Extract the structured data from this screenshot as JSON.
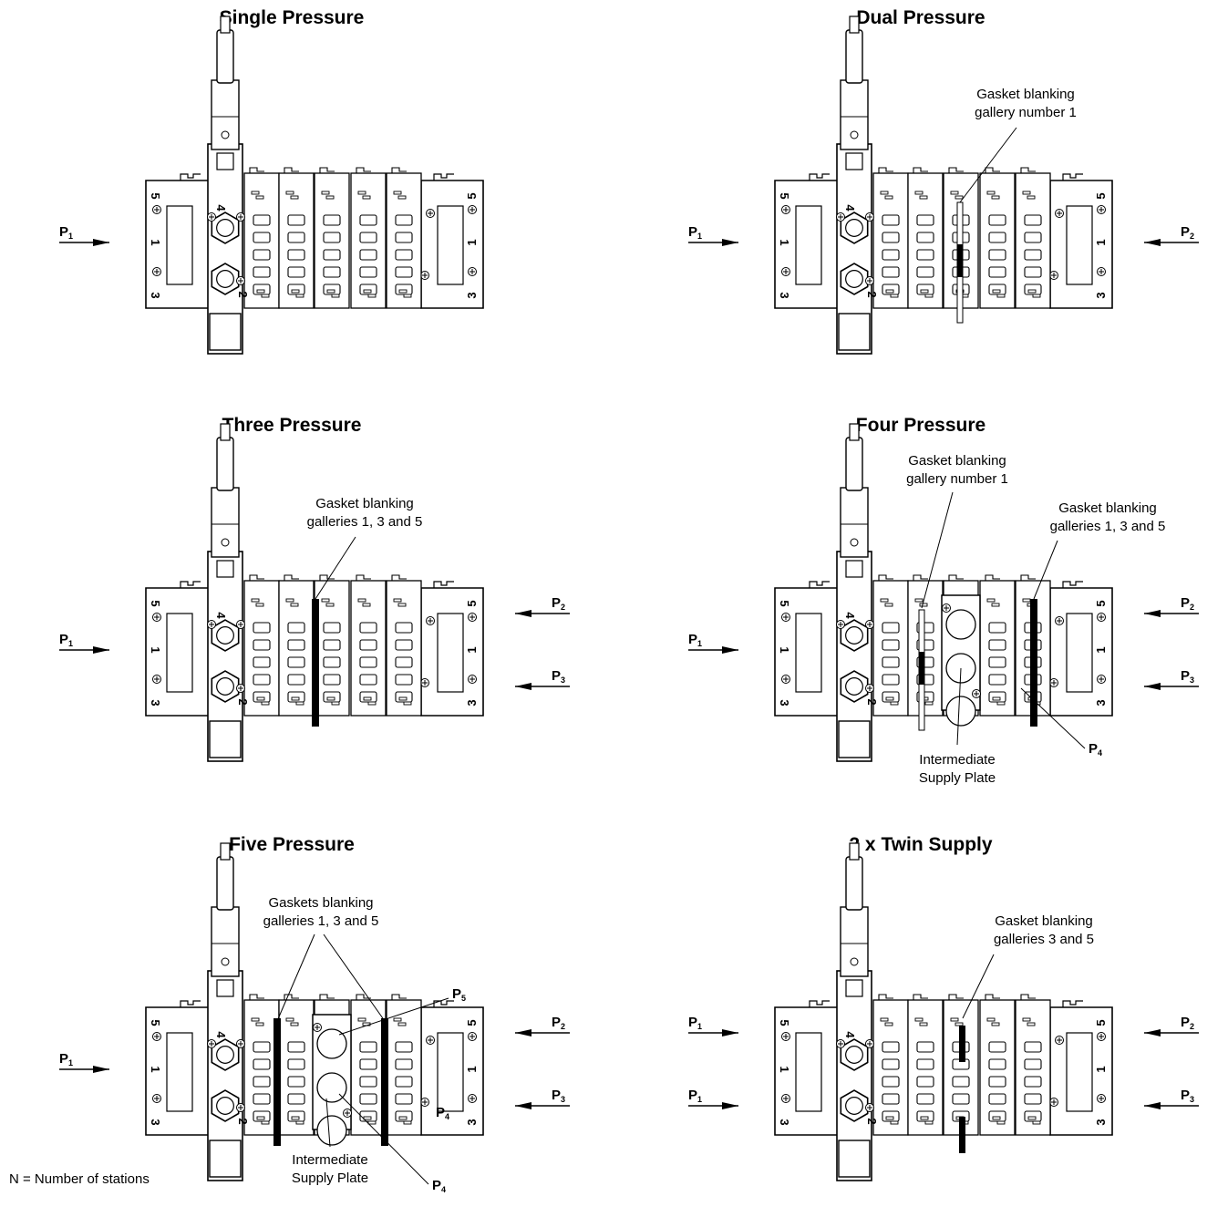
{
  "panels": [
    {
      "id": "single",
      "title": "Single Pressure",
      "left_inputs": [
        "P1"
      ],
      "right_inputs": [],
      "blanking_bars": [],
      "supply_plate": false,
      "callouts": []
    },
    {
      "id": "dual",
      "title": "Dual Pressure",
      "left_inputs": [
        "P1"
      ],
      "right_inputs": [
        "P2"
      ],
      "blanking_bars": [
        "gasket-1-full"
      ],
      "supply_plate": false,
      "callouts": [
        {
          "lines": [
            "Gasket blanking",
            "gallery number 1"
          ]
        }
      ]
    },
    {
      "id": "three",
      "title": "Three Pressure",
      "left_inputs": [
        "P1"
      ],
      "right_inputs": [
        "P2",
        "P3"
      ],
      "blanking_bars": [
        "gasket-135"
      ],
      "supply_plate": false,
      "callouts": [
        {
          "lines": [
            "Gasket blanking",
            "galleries 1, 3 and 5"
          ]
        }
      ]
    },
    {
      "id": "four",
      "title": "Four Pressure",
      "left_inputs": [
        "P1"
      ],
      "right_inputs": [
        "P2",
        "P3"
      ],
      "blanking_bars": [
        "gasket-1-full",
        "gasket-135"
      ],
      "supply_plate": true,
      "callouts": [
        {
          "lines": [
            "Gasket blanking",
            "gallery number 1"
          ]
        },
        {
          "lines": [
            "Gasket blanking",
            "galleries 1, 3 and 5"
          ]
        },
        {
          "lines": [
            "Intermediate",
            "Supply Plate"
          ]
        },
        {
          "lines": [
            "P4"
          ]
        }
      ]
    },
    {
      "id": "five",
      "title": "Five Pressure",
      "left_inputs": [
        "P1"
      ],
      "right_inputs": [
        "P2",
        "P3"
      ],
      "blanking_bars": [
        "gasket-135",
        "gasket-135"
      ],
      "supply_plate": true,
      "callouts": [
        {
          "lines": [
            "Gaskets blanking",
            "galleries 1, 3 and 5"
          ]
        },
        {
          "lines": [
            "P5"
          ]
        },
        {
          "lines": [
            "P4"
          ]
        },
        {
          "lines": [
            "Intermediate",
            "Supply Plate"
          ]
        },
        {
          "lines": [
            "P4"
          ]
        }
      ]
    },
    {
      "id": "twin",
      "title": "2 x Twin Supply",
      "left_inputs": [
        "P1",
        "P1"
      ],
      "right_inputs": [
        "P2",
        "P3"
      ],
      "blanking_bars": [
        "gasket-35-split"
      ],
      "supply_plate": false,
      "callouts": [
        {
          "lines": [
            "Gasket blanking",
            "galleries 3 and 5"
          ]
        }
      ]
    }
  ],
  "port_numbers": [
    "5",
    "1",
    "3"
  ],
  "valve_ports": [
    "4",
    "2"
  ],
  "footnote": "N = Number of stations"
}
